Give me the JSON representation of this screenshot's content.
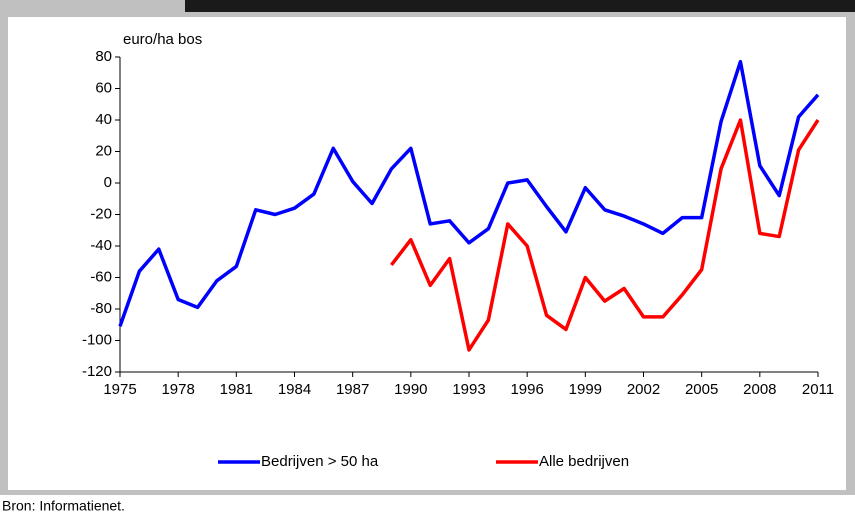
{
  "chart_data": {
    "type": "line",
    "y_label": "euro/ha bos",
    "source": "Bron: Informatienet.",
    "x": [
      1975,
      1976,
      1977,
      1978,
      1979,
      1980,
      1981,
      1982,
      1983,
      1984,
      1985,
      1986,
      1987,
      1988,
      1989,
      1990,
      1991,
      1992,
      1993,
      1994,
      1995,
      1996,
      1997,
      1998,
      1999,
      2000,
      2001,
      2002,
      2003,
      2004,
      2005,
      2006,
      2007,
      2008,
      2009,
      2010,
      2011
    ],
    "series": [
      {
        "name": "Bedrijven > 50 ha",
        "color": "#0000ff",
        "values": [
          -91,
          -56,
          -42,
          -74,
          -79,
          -62,
          -53,
          -17,
          -20,
          -16,
          -7,
          22,
          1,
          -13,
          9,
          22,
          -26,
          -24,
          -38,
          -29,
          0,
          2,
          -15,
          -31,
          -3,
          -17,
          -21,
          -26,
          -32,
          -22,
          -22,
          39,
          77,
          11,
          -8,
          42,
          56
        ]
      },
      {
        "name": "Alle bedrijven",
        "color": "#ff0000",
        "values": [
          null,
          null,
          null,
          null,
          null,
          null,
          null,
          null,
          null,
          null,
          null,
          null,
          null,
          null,
          -52,
          -36,
          -65,
          -48,
          -106,
          -87,
          -26,
          -40,
          -84,
          -93,
          -60,
          -75,
          -67,
          -85,
          -85,
          -71,
          -55,
          9,
          40,
          -32,
          -34,
          21,
          40
        ]
      }
    ],
    "xlim": [
      1975,
      2011
    ],
    "xticks": [
      1975,
      1978,
      1981,
      1984,
      1987,
      1990,
      1993,
      1996,
      1999,
      2002,
      2005,
      2008,
      2011
    ],
    "ylim": [
      -120,
      80
    ],
    "yticks": [
      -120,
      -100,
      -80,
      -60,
      -40,
      -20,
      0,
      20,
      40,
      60,
      80
    ],
    "grid": false
  }
}
